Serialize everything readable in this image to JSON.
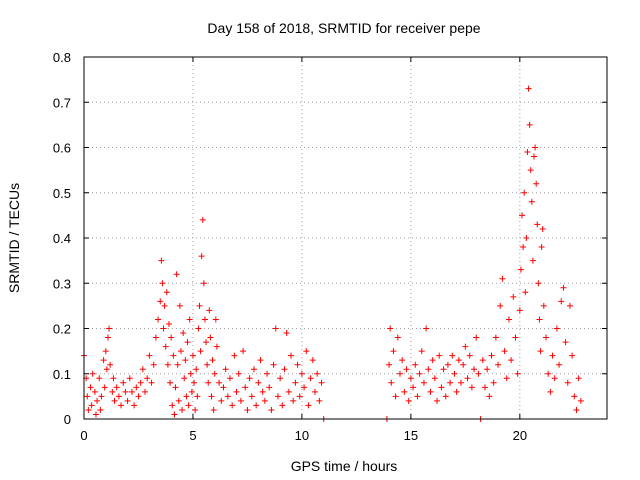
{
  "chart_data": {
    "type": "scatter",
    "title": "Day 158 of 2018, SRMTID for receiver pepe",
    "xlabel": "GPS time / hours",
    "ylabel": "SRMTID / TECUs",
    "xlim": [
      0,
      24
    ],
    "ylim": [
      0,
      0.8
    ],
    "xticks": [
      0,
      5,
      10,
      15,
      20
    ],
    "yticks": [
      0,
      0.1,
      0.2,
      0.3,
      0.4,
      0.5,
      0.6,
      0.7,
      0.8
    ],
    "xtick_labels": [
      "0",
      "5",
      "10",
      "15",
      "20"
    ],
    "ytick_labels": [
      "0",
      "0.1",
      "0.2",
      "0.3",
      "0.4",
      "0.5",
      "0.6",
      "0.7",
      "0.8"
    ],
    "grid": true,
    "marker": "+",
    "color": "#ff0000",
    "series": [
      {
        "name": "SRMTID",
        "points": [
          [
            0.0,
            0.14
          ],
          [
            0.1,
            0.09
          ],
          [
            0.15,
            0.05
          ],
          [
            0.2,
            0.02
          ],
          [
            0.3,
            0.07
          ],
          [
            0.35,
            0.03
          ],
          [
            0.4,
            0.1
          ],
          [
            0.5,
            0.06
          ],
          [
            0.55,
            0.01
          ],
          [
            0.6,
            0.04
          ],
          [
            0.7,
            0.09
          ],
          [
            0.75,
            0.02
          ],
          [
            0.8,
            0.05
          ],
          [
            0.9,
            0.13
          ],
          [
            0.95,
            0.07
          ],
          [
            1.0,
            0.15
          ],
          [
            1.05,
            0.11
          ],
          [
            1.1,
            0.18
          ],
          [
            1.15,
            0.2
          ],
          [
            1.2,
            0.12
          ],
          [
            1.3,
            0.06
          ],
          [
            1.35,
            0.09
          ],
          [
            1.4,
            0.04
          ],
          [
            1.5,
            0.07
          ],
          [
            1.6,
            0.05
          ],
          [
            1.7,
            0.03
          ],
          [
            1.8,
            0.08
          ],
          [
            1.9,
            0.06
          ],
          [
            2.0,
            0.04
          ],
          [
            2.1,
            0.09
          ],
          [
            2.2,
            0.06
          ],
          [
            2.3,
            0.03
          ],
          [
            2.4,
            0.07
          ],
          [
            2.5,
            0.05
          ],
          [
            2.6,
            0.08
          ],
          [
            2.7,
            0.11
          ],
          [
            2.8,
            0.06
          ],
          [
            2.9,
            0.09
          ],
          [
            3.0,
            0.14
          ],
          [
            3.1,
            0.08
          ],
          [
            3.2,
            0.12
          ],
          [
            3.3,
            0.18
          ],
          [
            3.4,
            0.22
          ],
          [
            3.5,
            0.26
          ],
          [
            3.55,
            0.35
          ],
          [
            3.6,
            0.3
          ],
          [
            3.65,
            0.2
          ],
          [
            3.7,
            0.25
          ],
          [
            3.75,
            0.16
          ],
          [
            3.8,
            0.28
          ],
          [
            3.85,
            0.12
          ],
          [
            3.9,
            0.21
          ],
          [
            3.95,
            0.08
          ],
          [
            4.0,
            0.18
          ],
          [
            4.05,
            0.03
          ],
          [
            4.1,
            0.14
          ],
          [
            4.15,
            0.01
          ],
          [
            4.2,
            0.07
          ],
          [
            4.25,
            0.32
          ],
          [
            4.3,
            0.12
          ],
          [
            4.35,
            0.04
          ],
          [
            4.4,
            0.25
          ],
          [
            4.45,
            0.15
          ],
          [
            4.5,
            0.02
          ],
          [
            4.55,
            0.19
          ],
          [
            4.6,
            0.09
          ],
          [
            4.65,
            0.13
          ],
          [
            4.7,
            0.05
          ],
          [
            4.75,
            0.17
          ],
          [
            4.8,
            0.03
          ],
          [
            4.85,
            0.22
          ],
          [
            4.9,
            0.1
          ],
          [
            4.95,
            0.06
          ],
          [
            5.0,
            0.14
          ],
          [
            5.05,
            0.08
          ],
          [
            5.1,
            0.02
          ],
          [
            5.15,
            0.11
          ],
          [
            5.2,
            0.05
          ],
          [
            5.25,
            0.2
          ],
          [
            5.3,
            0.25
          ],
          [
            5.35,
            0.15
          ],
          [
            5.4,
            0.36
          ],
          [
            5.45,
            0.44
          ],
          [
            5.5,
            0.3
          ],
          [
            5.55,
            0.22
          ],
          [
            5.6,
            0.17
          ],
          [
            5.65,
            0.12
          ],
          [
            5.7,
            0.08
          ],
          [
            5.75,
            0.24
          ],
          [
            5.8,
            0.18
          ],
          [
            5.85,
            0.05
          ],
          [
            5.9,
            0.13
          ],
          [
            5.95,
            0.02
          ],
          [
            6.0,
            0.1
          ],
          [
            6.05,
            0.22
          ],
          [
            6.1,
            0.16
          ],
          [
            6.2,
            0.08
          ],
          [
            6.3,
            0.04
          ],
          [
            6.4,
            0.07
          ],
          [
            6.5,
            0.11
          ],
          [
            6.6,
            0.05
          ],
          [
            6.7,
            0.09
          ],
          [
            6.8,
            0.03
          ],
          [
            6.9,
            0.14
          ],
          [
            7.0,
            0.06
          ],
          [
            7.1,
            0.1
          ],
          [
            7.2,
            0.04
          ],
          [
            7.3,
            0.15
          ],
          [
            7.4,
            0.07
          ],
          [
            7.5,
            0.02
          ],
          [
            7.6,
            0.09
          ],
          [
            7.7,
            0.05
          ],
          [
            7.8,
            0.11
          ],
          [
            7.9,
            0.03
          ],
          [
            8.0,
            0.08
          ],
          [
            8.1,
            0.13
          ],
          [
            8.2,
            0.06
          ],
          [
            8.3,
            0.04
          ],
          [
            8.4,
            0.1
          ],
          [
            8.5,
            0.07
          ],
          [
            8.6,
            0.02
          ],
          [
            8.7,
            0.12
          ],
          [
            8.8,
            0.2
          ],
          [
            8.9,
            0.05
          ],
          [
            9.0,
            0.09
          ],
          [
            9.1,
            0.03
          ],
          [
            9.2,
            0.11
          ],
          [
            9.3,
            0.19
          ],
          [
            9.4,
            0.06
          ],
          [
            9.5,
            0.14
          ],
          [
            9.6,
            0.04
          ],
          [
            9.7,
            0.08
          ],
          [
            9.8,
            0.12
          ],
          [
            9.9,
            0.05
          ],
          [
            10.0,
            0.1
          ],
          [
            10.1,
            0.07
          ],
          [
            10.2,
            0.15
          ],
          [
            10.3,
            0.03
          ],
          [
            10.4,
            0.09
          ],
          [
            10.5,
            0.13
          ],
          [
            10.6,
            0.06
          ],
          [
            10.7,
            0.1
          ],
          [
            10.8,
            0.04
          ],
          [
            10.9,
            0.08
          ],
          [
            11.0,
            0.0
          ],
          [
            13.9,
            0.0
          ],
          [
            14.0,
            0.12
          ],
          [
            14.05,
            0.2
          ],
          [
            14.1,
            0.08
          ],
          [
            14.2,
            0.15
          ],
          [
            14.3,
            0.05
          ],
          [
            14.4,
            0.18
          ],
          [
            14.5,
            0.1
          ],
          [
            14.6,
            0.13
          ],
          [
            14.7,
            0.06
          ],
          [
            14.8,
            0.11
          ],
          [
            14.9,
            0.04
          ],
          [
            15.0,
            0.09
          ],
          [
            15.1,
            0.07
          ],
          [
            15.2,
            0.12
          ],
          [
            15.3,
            0.05
          ],
          [
            15.4,
            0.1
          ],
          [
            15.5,
            0.15
          ],
          [
            15.6,
            0.08
          ],
          [
            15.7,
            0.2
          ],
          [
            15.8,
            0.11
          ],
          [
            15.9,
            0.06
          ],
          [
            16.0,
            0.13
          ],
          [
            16.1,
            0.09
          ],
          [
            16.2,
            0.04
          ],
          [
            16.3,
            0.14
          ],
          [
            16.4,
            0.07
          ],
          [
            16.5,
            0.11
          ],
          [
            16.6,
            0.05
          ],
          [
            16.7,
            0.12
          ],
          [
            16.8,
            0.08
          ],
          [
            16.9,
            0.14
          ],
          [
            17.0,
            0.1
          ],
          [
            17.1,
            0.06
          ],
          [
            17.2,
            0.13
          ],
          [
            17.3,
            0.08
          ],
          [
            17.4,
            0.12
          ],
          [
            17.5,
            0.16
          ],
          [
            17.6,
            0.09
          ],
          [
            17.7,
            0.14
          ],
          [
            17.8,
            0.07
          ],
          [
            17.9,
            0.11
          ],
          [
            18.0,
            0.18
          ],
          [
            18.1,
            0.1
          ],
          [
            18.2,
            0.0
          ],
          [
            18.3,
            0.13
          ],
          [
            18.4,
            0.07
          ],
          [
            18.5,
            0.11
          ],
          [
            18.6,
            0.05
          ],
          [
            18.7,
            0.14
          ],
          [
            18.8,
            0.08
          ],
          [
            18.9,
            0.18
          ],
          [
            19.0,
            0.12
          ],
          [
            19.1,
            0.25
          ],
          [
            19.2,
            0.31
          ],
          [
            19.3,
            0.15
          ],
          [
            19.4,
            0.09
          ],
          [
            19.5,
            0.22
          ],
          [
            19.6,
            0.13
          ],
          [
            19.7,
            0.27
          ],
          [
            19.8,
            0.18
          ],
          [
            19.9,
            0.1
          ],
          [
            20.0,
            0.24
          ],
          [
            20.05,
            0.33
          ],
          [
            20.1,
            0.45
          ],
          [
            20.15,
            0.38
          ],
          [
            20.2,
            0.5
          ],
          [
            20.25,
            0.28
          ],
          [
            20.3,
            0.4
          ],
          [
            20.35,
            0.59
          ],
          [
            20.4,
            0.73
          ],
          [
            20.45,
            0.65
          ],
          [
            20.5,
            0.55
          ],
          [
            20.55,
            0.48
          ],
          [
            20.6,
            0.35
          ],
          [
            20.65,
            0.58
          ],
          [
            20.7,
            0.6
          ],
          [
            20.75,
            0.52
          ],
          [
            20.8,
            0.43
          ],
          [
            20.85,
            0.3
          ],
          [
            20.9,
            0.22
          ],
          [
            20.95,
            0.15
          ],
          [
            21.0,
            0.38
          ],
          [
            21.05,
            0.42
          ],
          [
            21.1,
            0.25
          ],
          [
            21.2,
            0.18
          ],
          [
            21.3,
            0.1
          ],
          [
            21.4,
            0.06
          ],
          [
            21.5,
            0.14
          ],
          [
            21.6,
            0.09
          ],
          [
            21.7,
            0.2
          ],
          [
            21.8,
            0.12
          ],
          [
            21.9,
            0.26
          ],
          [
            22.0,
            0.29
          ],
          [
            22.1,
            0.17
          ],
          [
            22.2,
            0.08
          ],
          [
            22.3,
            0.25
          ],
          [
            22.4,
            0.14
          ],
          [
            22.5,
            0.05
          ],
          [
            22.6,
            0.02
          ],
          [
            22.7,
            0.09
          ],
          [
            22.8,
            0.04
          ]
        ]
      }
    ]
  }
}
